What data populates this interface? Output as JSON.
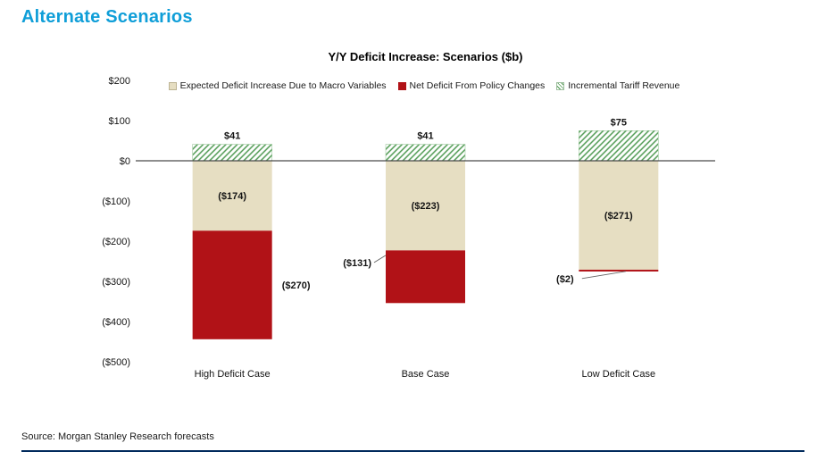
{
  "page": {
    "title": "Alternate Scenarios",
    "source": "Source: Morgan Stanley Research forecasts"
  },
  "chart_data": {
    "type": "bar",
    "stacked": true,
    "title": "Y/Y Deficit Increase: Scenarios ($b)",
    "categories": [
      "High Deficit Case",
      "Base Case",
      "Low Deficit Case"
    ],
    "series": [
      {
        "name": "Expected Deficit Increase Due to Macro Variables",
        "values": [
          -174,
          -223,
          -271
        ],
        "labels": [
          "($174)",
          "($223)",
          "($271)"
        ],
        "color": "#e6dec2"
      },
      {
        "name": "Net Deficit From Policy Changes",
        "values": [
          -270,
          -131,
          -2
        ],
        "labels": [
          "($270)",
          "($131)",
          "($2)"
        ],
        "label_positions": [
          "right",
          "left",
          "below"
        ],
        "color": "#b11217"
      },
      {
        "name": "Incremental Tariff Revenue",
        "values": [
          41,
          41,
          75
        ],
        "labels": [
          "$41",
          "$41",
          "$75"
        ],
        "color": "#4f9a52",
        "pattern": "diagonal-hatch"
      }
    ],
    "ylim": [
      -500,
      200
    ],
    "y_ticks": [
      200,
      100,
      0,
      -100,
      -200,
      -300,
      -400,
      -500
    ],
    "y_tick_labels": [
      "$200",
      "$100",
      "$0",
      "($100)",
      "($200)",
      "($300)",
      "($400)",
      "($500)"
    ],
    "grid": false,
    "legend_position": "top"
  }
}
